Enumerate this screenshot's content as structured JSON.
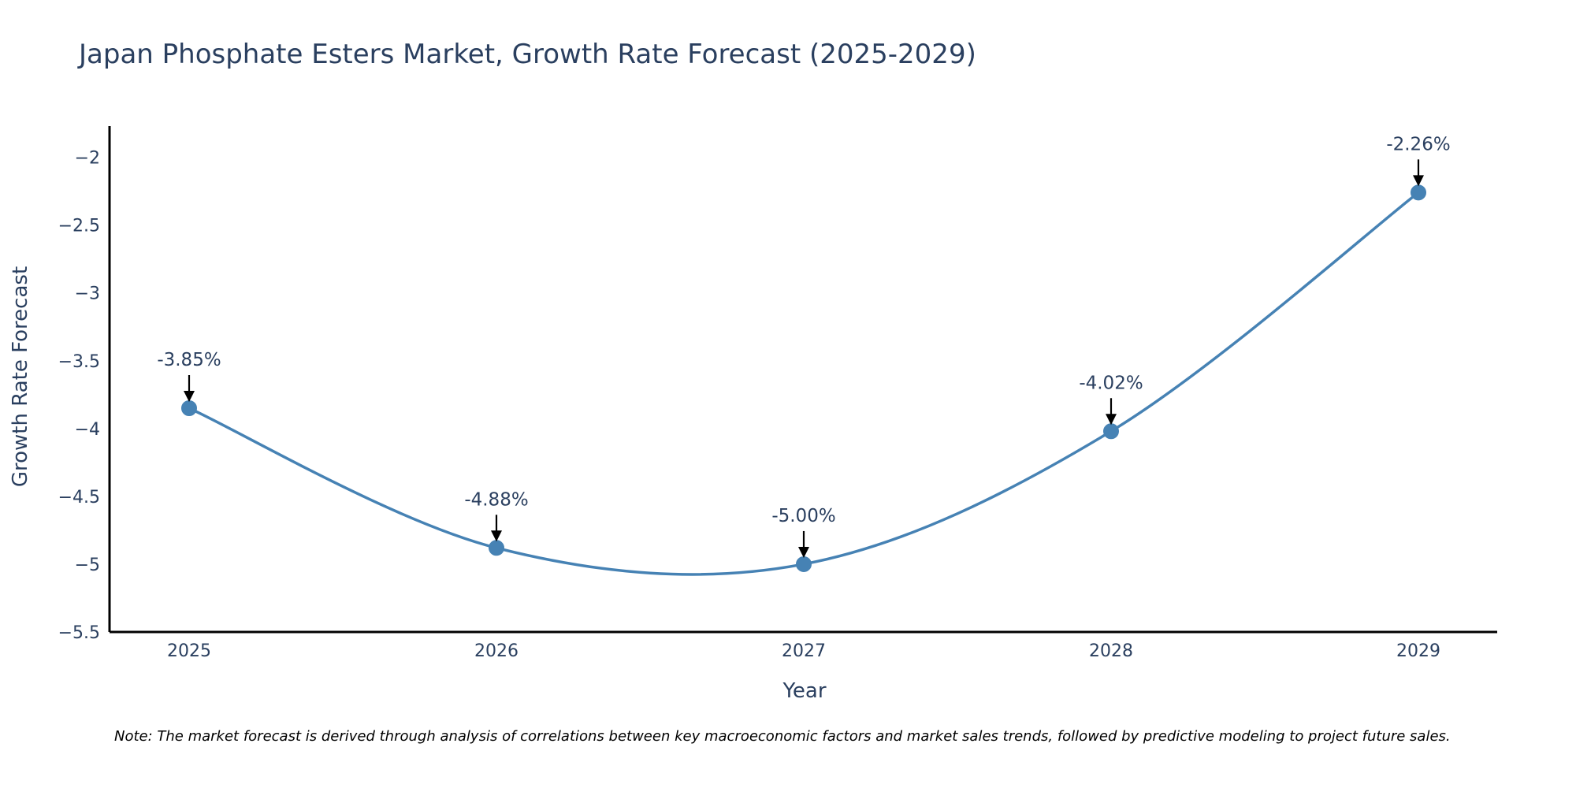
{
  "chart_data": {
    "type": "line",
    "title": "Japan Phosphate Esters Market, Growth Rate Forecast (2025-2029)",
    "xlabel": "Year",
    "ylabel": "Growth Rate Forecast",
    "categories": [
      "2025",
      "2026",
      "2027",
      "2028",
      "2029"
    ],
    "series": [
      {
        "name": "Growth Rate Forecast",
        "values": [
          -3.85,
          -4.88,
          -5.0,
          -4.02,
          -2.26
        ],
        "data_labels": [
          "-3.85%",
          "-4.88%",
          "-5.00%",
          "-4.02%",
          "-2.26%"
        ]
      }
    ],
    "ylim": [
      -5.5,
      -1.77
    ],
    "yticks": [
      -5.5,
      -5,
      -4.5,
      -4,
      -3.5,
      -3,
      -2.5,
      -2
    ],
    "ytick_labels": [
      "−5.5",
      "−5",
      "−4.5",
      "−4",
      "−3.5",
      "−3",
      "−2.5",
      "−2"
    ],
    "grid": false,
    "line_color": "#4682b4",
    "marker_color": "#4682b4",
    "arrow_color": "#000000",
    "note": "Note: The market forecast is derived through analysis of correlations between key macroeconomic factors and market sales trends, followed by predictive modeling to project future sales."
  }
}
